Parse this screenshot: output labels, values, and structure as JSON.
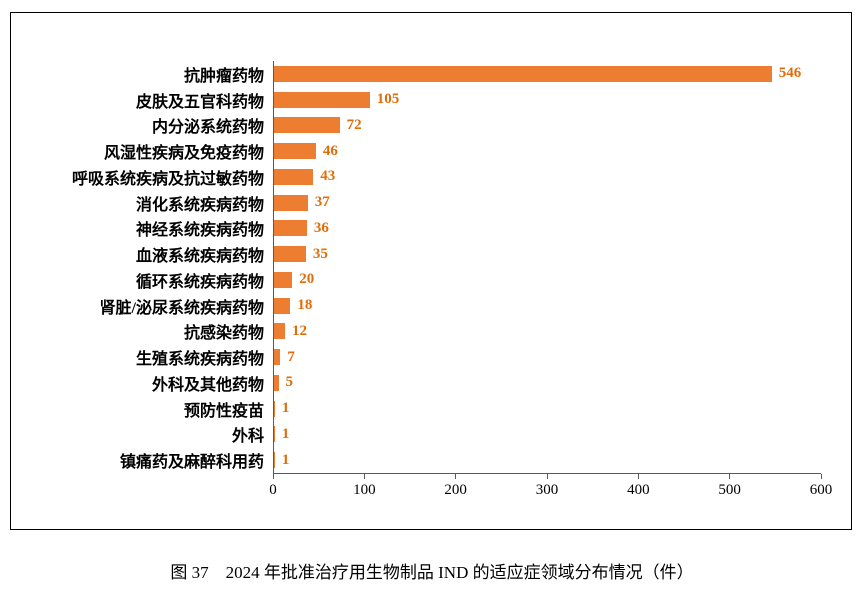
{
  "caption": "图 37　2024 年批准治疗用生物制品 IND 的适应症领域分布情况（件）",
  "colors": {
    "bar": "#ED7D31",
    "value_label": "#E36C09",
    "axis": "#595959"
  },
  "chart_data": {
    "type": "bar",
    "orientation": "horizontal",
    "title": "",
    "xlabel": "",
    "ylabel": "",
    "categories": [
      "抗肿瘤药物",
      "皮肤及五官科药物",
      "内分泌系统药物",
      "风湿性疾病及免疫药物",
      "呼吸系统疾病及抗过敏药物",
      "消化系统疾病药物",
      "神经系统疾病药物",
      "血液系统疾病药物",
      "循环系统疾病药物",
      "肾脏/泌尿系统疾病药物",
      "抗感染药物",
      "生殖系统疾病药物",
      "外科及其他药物",
      "预防性疫苗",
      "外科",
      "镇痛药及麻醉科用药"
    ],
    "values": [
      546,
      105,
      72,
      46,
      43,
      37,
      36,
      35,
      20,
      18,
      12,
      7,
      5,
      1,
      1,
      1
    ],
    "xlim": [
      0,
      600
    ],
    "xticks": [
      0,
      100,
      200,
      300,
      400,
      500,
      600
    ],
    "grid": false,
    "legend": false,
    "value_labels": true
  }
}
